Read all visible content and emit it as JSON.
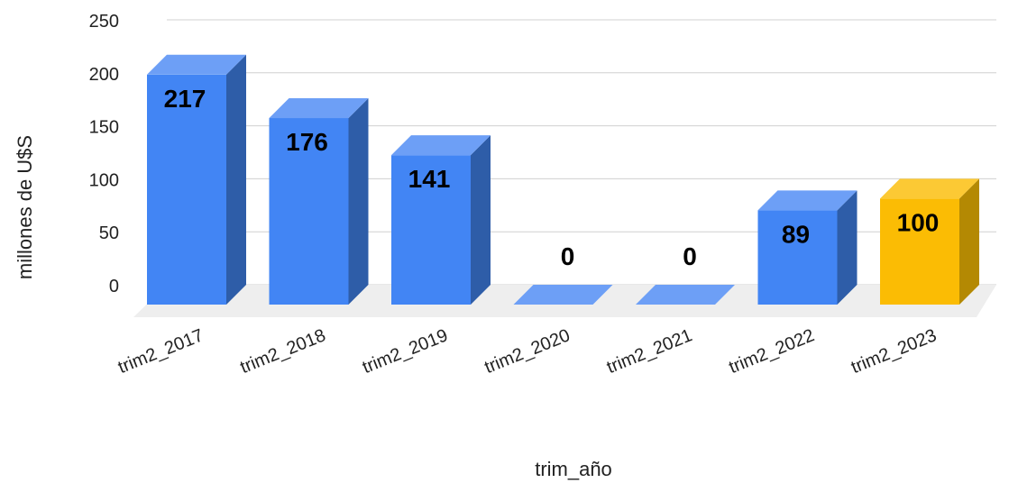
{
  "chart_data": {
    "type": "bar",
    "title": "",
    "xlabel": "trim_año",
    "ylabel": "millones de U$S",
    "categories": [
      "trim2_2017",
      "trim2_2018",
      "trim2_2019",
      "trim2_2020",
      "trim2_2021",
      "trim2_2022",
      "trim2_2023"
    ],
    "values": [
      217,
      176,
      141,
      0,
      0,
      89,
      100
    ],
    "data_labels": [
      "217",
      "176",
      "141",
      "0",
      "0",
      "89",
      "100"
    ],
    "highlight_index": 6,
    "ylim": [
      0,
      250
    ],
    "yticks": [
      "0",
      "50",
      "100",
      "150",
      "200",
      "250"
    ],
    "grid": true,
    "legend": "none",
    "colors": {
      "bar": "#4285f4",
      "bar_top": "#6d9ff6",
      "bar_side": "#2e5da8",
      "highlight": "#fbbc04",
      "highlight_top": "#fcc934",
      "highlight_side": "#b48903",
      "floor": "#eeeeee",
      "grid": "#d0d0d0"
    }
  }
}
